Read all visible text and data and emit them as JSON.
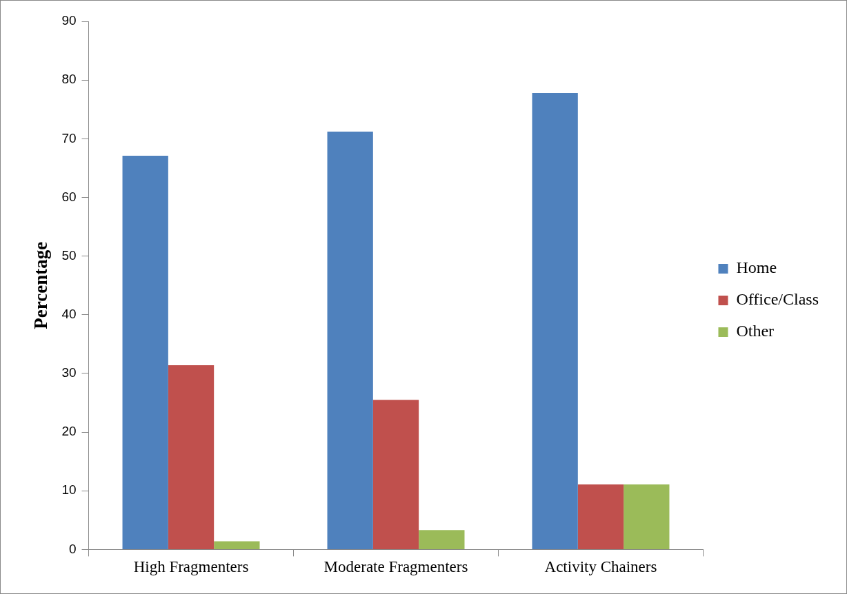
{
  "chart_data": {
    "type": "bar",
    "ylabel": "Percentage",
    "categories": [
      "High Fragmenters",
      "Moderate Fragmenters",
      "Activity Chainers"
    ],
    "series": [
      {
        "name": "Home",
        "color": "#4f81bd",
        "values": [
          67.1,
          71.2,
          77.8
        ]
      },
      {
        "name": "Office/Class",
        "color": "#c0504d",
        "values": [
          31.4,
          25.5,
          11.1
        ]
      },
      {
        "name": "Other",
        "color": "#9bbb59",
        "values": [
          1.4,
          3.3,
          11.1
        ]
      }
    ],
    "ylim": [
      0,
      90
    ],
    "yticks": [
      0,
      10,
      20,
      30,
      40,
      50,
      60,
      70,
      80,
      90
    ],
    "grid": false,
    "legend": "right"
  }
}
